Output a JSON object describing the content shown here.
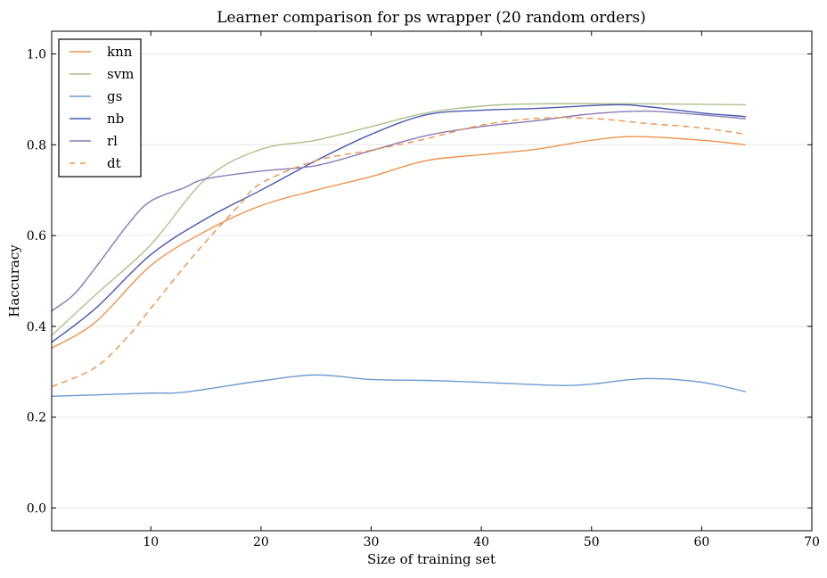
{
  "chart_data": {
    "type": "line",
    "title": "Learner comparison for ps wrapper (20 random orders)",
    "xlabel": "Size of training set",
    "ylabel": "Haccuracy",
    "xlim": [
      1,
      70
    ],
    "ylim": [
      -0.05,
      1.05
    ],
    "xticks": [
      10,
      20,
      30,
      40,
      50,
      60,
      70
    ],
    "yticks": [
      0.0,
      0.2,
      0.4,
      0.6,
      0.8,
      1.0
    ],
    "grid": "horizontal",
    "legend_position": "top-left",
    "series": [
      {
        "name": "knn",
        "color": "#f0914a",
        "dash": false,
        "x": [
          1,
          5,
          10,
          15,
          20,
          25,
          30,
          35,
          40,
          45,
          50,
          54,
          60,
          64
        ],
        "y": [
          0.352,
          0.41,
          0.534,
          0.61,
          0.666,
          0.7,
          0.73,
          0.765,
          0.778,
          0.79,
          0.81,
          0.818,
          0.81,
          0.8
        ]
      },
      {
        "name": "svm",
        "color": "#adc18a",
        "dash": false,
        "x": [
          1,
          5,
          10,
          15,
          20,
          25,
          30,
          35,
          40,
          45,
          55,
          64
        ],
        "y": [
          0.38,
          0.47,
          0.58,
          0.725,
          0.79,
          0.81,
          0.84,
          0.87,
          0.885,
          0.89,
          0.89,
          0.888
        ]
      },
      {
        "name": "gs",
        "color": "#6b9bd0",
        "dash": false,
        "x": [
          1,
          10,
          13,
          20,
          25,
          30,
          35,
          40,
          47,
          50,
          55,
          60,
          64
        ],
        "y": [
          0.246,
          0.253,
          0.255,
          0.28,
          0.293,
          0.283,
          0.281,
          0.277,
          0.27,
          0.273,
          0.285,
          0.277,
          0.256
        ]
      },
      {
        "name": "nb",
        "color": "#4a5ab0",
        "dash": false,
        "x": [
          1,
          5,
          10,
          15,
          20,
          25,
          30,
          35,
          40,
          45,
          52,
          55,
          60,
          64
        ],
        "y": [
          0.365,
          0.44,
          0.558,
          0.637,
          0.7,
          0.765,
          0.823,
          0.866,
          0.876,
          0.88,
          0.888,
          0.884,
          0.87,
          0.862
        ]
      },
      {
        "name": "rl",
        "color": "#8a78b4",
        "dash": false,
        "x": [
          1,
          3,
          5,
          8,
          10,
          13,
          15,
          20,
          25,
          30,
          35,
          40,
          45,
          50,
          55,
          60,
          64
        ],
        "y": [
          0.434,
          0.47,
          0.53,
          0.627,
          0.676,
          0.705,
          0.725,
          0.742,
          0.754,
          0.787,
          0.82,
          0.84,
          0.853,
          0.868,
          0.874,
          0.866,
          0.857
        ]
      },
      {
        "name": "dt",
        "color": "#f0914a",
        "dash": true,
        "x": [
          1,
          5,
          8,
          10,
          13,
          15,
          18,
          20,
          25,
          30,
          35,
          40,
          45,
          50,
          55,
          60,
          64
        ],
        "y": [
          0.267,
          0.31,
          0.38,
          0.44,
          0.53,
          0.587,
          0.666,
          0.715,
          0.765,
          0.788,
          0.813,
          0.843,
          0.858,
          0.858,
          0.847,
          0.837,
          0.823
        ]
      }
    ]
  }
}
